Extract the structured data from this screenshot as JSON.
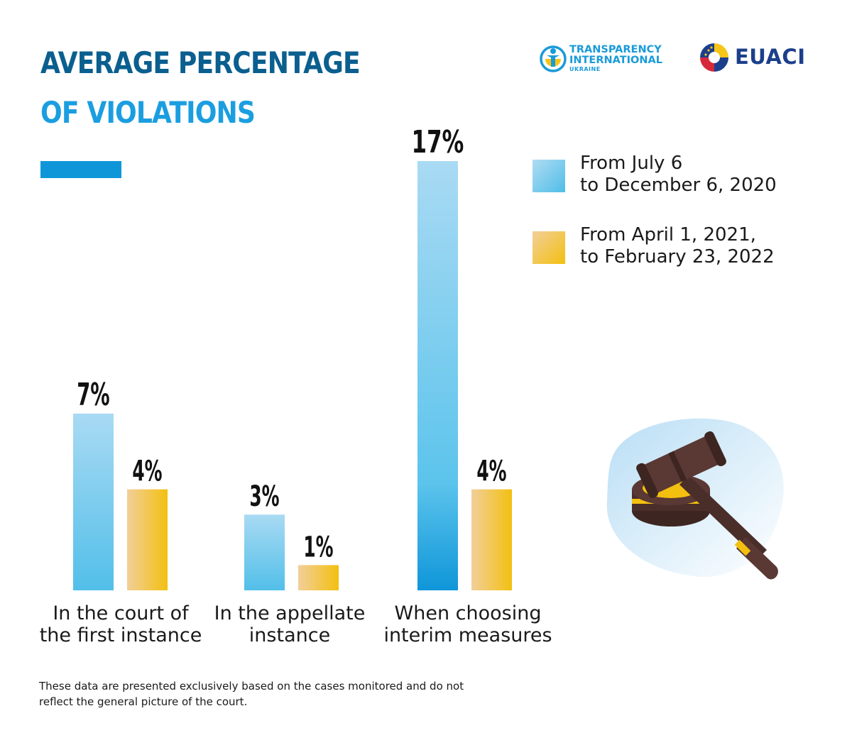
{
  "header": {
    "title_line1": "AVERAGE PERCENTAGE",
    "title_line2": "OF VIOLATIONS",
    "colors": {
      "title_dark": "#0a5f8f",
      "title_light": "#1b9ee0",
      "accent_bar": "#0f96d9"
    }
  },
  "logos": {
    "ti": {
      "line1": "TRANSPARENCY",
      "line2": "INTERNATIONAL",
      "sub": "UKRAINE"
    },
    "euaci": {
      "text": "EUACI"
    }
  },
  "legend": [
    {
      "line1": "From July 6",
      "line2": "to December 6, 2020"
    },
    {
      "line1": "From April 1, 2021,",
      "line2": "to February 23, 2022"
    }
  ],
  "chart_data": {
    "type": "bar",
    "categories": [
      [
        "In the court of",
        "the first instance"
      ],
      [
        "In the appellate",
        "instance"
      ],
      [
        "When choosing",
        "interim measures"
      ]
    ],
    "series": [
      {
        "values": [
          7,
          3,
          17
        ],
        "labels": [
          "7%",
          "3%",
          "17%"
        ],
        "color_from": "#a9daf3",
        "color_to": "#52bfe9"
      },
      {
        "values": [
          4,
          1,
          4
        ],
        "labels": [
          "4%",
          "1%",
          "4%"
        ],
        "color_from": "#f2cf9a",
        "color_to": "#f3c010"
      }
    ],
    "ylim": [
      0,
      17
    ],
    "grid": false,
    "legend_position": "top-right"
  },
  "footnote": {
    "line1": "These data are presented exclusively based on the cases monitored and do not",
    "line2": "reflect the general picture of the court."
  },
  "illustration": {
    "icon": "gavel-icon"
  }
}
